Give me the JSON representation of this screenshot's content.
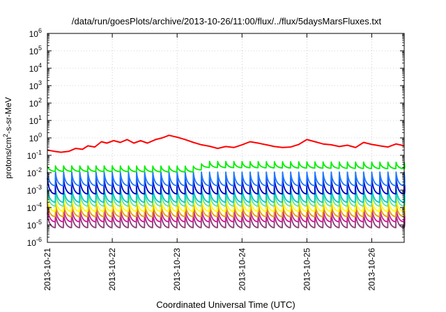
{
  "chart_data": {
    "type": "line",
    "title": "/data/run/goesPlots/archive/2013-10-26/11:00/flux/../flux/5daysMarsFluxes.txt",
    "xlabel": "Coordinated Universal Time (UTC)",
    "ylabel": {
      "base": "protons/cm",
      "sup": "2",
      "rest": "-s-sr-MeV"
    },
    "x_scale": "date",
    "xlim": [
      "2013-10-21T00:00",
      "2013-10-26T12:00"
    ],
    "y_scale": "log",
    "ylim": [
      1e-06,
      1000000.0
    ],
    "grid": true,
    "legend": "none",
    "x_ticks": [
      "2013-10-21",
      "2013-10-22",
      "2013-10-23",
      "2013-10-24",
      "2013-10-25",
      "2013-10-26"
    ],
    "y_ticks": [
      {
        "base": "10",
        "exp": "-6"
      },
      {
        "base": "10",
        "exp": "-5"
      },
      {
        "base": "10",
        "exp": "-4"
      },
      {
        "base": "10",
        "exp": "-3"
      },
      {
        "base": "10",
        "exp": "-2"
      },
      {
        "base": "10",
        "exp": "-1"
      },
      {
        "base": "10",
        "exp": "0"
      },
      {
        "base": "10",
        "exp": "1"
      },
      {
        "base": "10",
        "exp": "2"
      },
      {
        "base": "10",
        "exp": "3"
      },
      {
        "base": "10",
        "exp": "4"
      },
      {
        "base": "10",
        "exp": "5"
      },
      {
        "base": "10",
        "exp": "6"
      }
    ],
    "series": [
      {
        "color": "#ff0000",
        "points": [
          [
            "2013-10-21T00:00",
            0.2
          ],
          [
            "2013-10-21T02:30",
            0.17
          ],
          [
            "2013-10-21T05:00",
            0.15
          ],
          [
            "2013-10-21T08:00",
            0.17
          ],
          [
            "2013-10-21T10:30",
            0.25
          ],
          [
            "2013-10-21T13:00",
            0.22
          ],
          [
            "2013-10-21T15:00",
            0.35
          ],
          [
            "2013-10-21T17:30",
            0.3
          ],
          [
            "2013-10-21T20:00",
            0.6
          ],
          [
            "2013-10-21T22:00",
            0.5
          ],
          [
            "2013-10-22T00:30",
            0.7
          ],
          [
            "2013-10-22T03:00",
            0.55
          ],
          [
            "2013-10-22T05:30",
            0.8
          ],
          [
            "2013-10-22T08:00",
            0.5
          ],
          [
            "2013-10-22T10:30",
            0.7
          ],
          [
            "2013-10-22T13:00",
            0.5
          ],
          [
            "2013-10-22T16:00",
            0.8
          ],
          [
            "2013-10-22T18:30",
            1.0
          ],
          [
            "2013-10-22T21:00",
            1.4
          ],
          [
            "2013-10-23T00:00",
            1.1
          ],
          [
            "2013-10-23T03:00",
            0.8
          ],
          [
            "2013-10-23T06:00",
            0.55
          ],
          [
            "2013-10-23T09:00",
            0.4
          ],
          [
            "2013-10-23T12:00",
            0.33
          ],
          [
            "2013-10-23T15:00",
            0.25
          ],
          [
            "2013-10-23T18:00",
            0.32
          ],
          [
            "2013-10-23T21:00",
            0.28
          ],
          [
            "2013-10-24T00:00",
            0.4
          ],
          [
            "2013-10-24T03:00",
            0.6
          ],
          [
            "2013-10-24T06:00",
            0.5
          ],
          [
            "2013-10-24T09:00",
            0.4
          ],
          [
            "2013-10-24T12:00",
            0.32
          ],
          [
            "2013-10-24T15:00",
            0.28
          ],
          [
            "2013-10-24T18:00",
            0.3
          ],
          [
            "2013-10-24T21:00",
            0.42
          ],
          [
            "2013-10-25T00:00",
            0.8
          ],
          [
            "2013-10-25T03:00",
            0.6
          ],
          [
            "2013-10-25T06:00",
            0.45
          ],
          [
            "2013-10-25T09:00",
            0.4
          ],
          [
            "2013-10-25T12:00",
            0.32
          ],
          [
            "2013-10-25T15:00",
            0.38
          ],
          [
            "2013-10-25T18:00",
            0.28
          ],
          [
            "2013-10-25T21:00",
            0.55
          ],
          [
            "2013-10-26T00:00",
            0.42
          ],
          [
            "2013-10-26T03:00",
            0.35
          ],
          [
            "2013-10-26T06:00",
            0.3
          ],
          [
            "2013-10-26T09:00",
            0.45
          ],
          [
            "2013-10-26T12:00",
            0.35
          ]
        ]
      },
      {
        "color": "#00ee00",
        "pattern": "sawtooth",
        "period_hours": 3,
        "low": [
          [
            "2013-10-21T00:00",
            0.012
          ],
          [
            "2013-10-23T08:00",
            0.011
          ],
          [
            "2013-10-23T10:00",
            0.02
          ],
          [
            "2013-10-26T12:00",
            0.017
          ]
        ],
        "high": [
          [
            "2013-10-21T00:00",
            0.025
          ],
          [
            "2013-10-23T08:00",
            0.024
          ],
          [
            "2013-10-23T10:00",
            0.045
          ],
          [
            "2013-10-26T12:00",
            0.04
          ]
        ]
      },
      {
        "color": "#1e78ff",
        "pattern": "sawtooth",
        "period_hours": 3,
        "low": [
          [
            "2013-10-21T00:00",
            0.0018
          ],
          [
            "2013-10-26T12:00",
            0.0018
          ]
        ],
        "high": [
          [
            "2013-10-21T00:00",
            0.011
          ],
          [
            "2013-10-26T12:00",
            0.011
          ]
        ]
      },
      {
        "color": "#0000cc",
        "pattern": "sawtooth",
        "period_hours": 3,
        "low": [
          [
            "2013-10-21T00:00",
            0.0006
          ],
          [
            "2013-10-26T12:00",
            0.0006
          ]
        ],
        "high": [
          [
            "2013-10-21T00:00",
            0.005
          ],
          [
            "2013-10-26T12:00",
            0.005
          ]
        ]
      },
      {
        "color": "#00c8c8",
        "pattern": "sawtooth",
        "period_hours": 3,
        "low": [
          [
            "2013-10-21T00:00",
            0.0002
          ],
          [
            "2013-10-26T12:00",
            0.0002
          ]
        ],
        "high": [
          [
            "2013-10-21T00:00",
            0.0015
          ],
          [
            "2013-10-26T12:00",
            0.0015
          ]
        ]
      },
      {
        "color": "#66e0a0",
        "pattern": "sawtooth",
        "period_hours": 3,
        "low": [
          [
            "2013-10-21T00:00",
            0.00012
          ],
          [
            "2013-10-26T12:00",
            0.00012
          ]
        ],
        "high": [
          [
            "2013-10-21T00:00",
            0.0009
          ],
          [
            "2013-10-26T12:00",
            0.0009
          ]
        ]
      },
      {
        "color": "#ffff00",
        "pattern": "sawtooth",
        "period_hours": 3,
        "low": [
          [
            "2013-10-21T00:00",
            6e-05
          ],
          [
            "2013-10-26T12:00",
            6e-05
          ]
        ],
        "high": [
          [
            "2013-10-21T00:00",
            0.0004
          ],
          [
            "2013-10-26T12:00",
            0.0004
          ]
        ]
      },
      {
        "color": "#e6a000",
        "pattern": "sawtooth",
        "period_hours": 3,
        "low": [
          [
            "2013-10-21T00:00",
            3e-05
          ],
          [
            "2013-10-26T12:00",
            3e-05
          ]
        ],
        "high": [
          [
            "2013-10-21T00:00",
            0.0002
          ],
          [
            "2013-10-26T12:00",
            0.0002
          ]
        ]
      },
      {
        "color": "#d21e96",
        "pattern": "sawtooth",
        "period_hours": 3,
        "low": [
          [
            "2013-10-21T00:00",
            1.5e-05
          ],
          [
            "2013-10-26T12:00",
            1.5e-05
          ]
        ],
        "high": [
          [
            "2013-10-21T00:00",
            0.00011
          ],
          [
            "2013-10-26T12:00",
            0.00011
          ]
        ]
      },
      {
        "color": "#8c3c78",
        "pattern": "sawtooth",
        "period_hours": 3,
        "low": [
          [
            "2013-10-21T00:00",
            7e-06
          ],
          [
            "2013-10-26T12:00",
            7e-06
          ]
        ],
        "high": [
          [
            "2013-10-21T00:00",
            5e-05
          ],
          [
            "2013-10-26T12:00",
            5e-05
          ]
        ]
      }
    ]
  }
}
